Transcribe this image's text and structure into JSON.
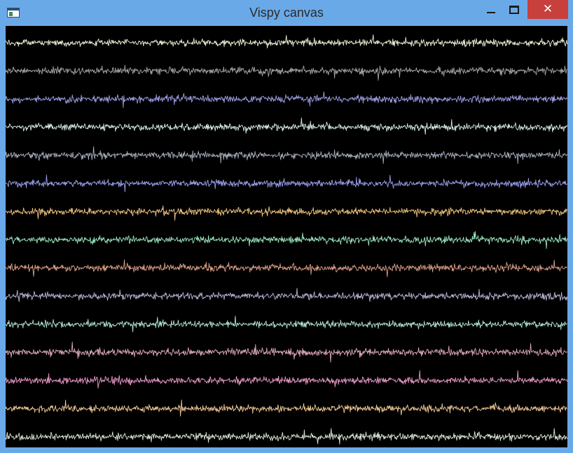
{
  "window": {
    "title": "Vispy canvas",
    "frame_color": "#6aa9e8",
    "close_button_color": "#c7403c",
    "controls": {
      "minimize_icon": "minimize-icon",
      "maximize_icon": "maximize-icon",
      "close_icon": "close-icon",
      "close_glyph": "✕"
    }
  },
  "canvas": {
    "background": "#000000",
    "signal_count": 15,
    "signal_colors": [
      "#eef0d8",
      "#a6a6a6",
      "#9ea2e8",
      "#d8eeea",
      "#a8adbf",
      "#9aa0ec",
      "#f0c580",
      "#9ce8bf",
      "#dea288",
      "#b8b8d6",
      "#b2e6d4",
      "#dcaab6",
      "#ea9ac8",
      "#f0c896",
      "#dcebd6"
    ]
  }
}
